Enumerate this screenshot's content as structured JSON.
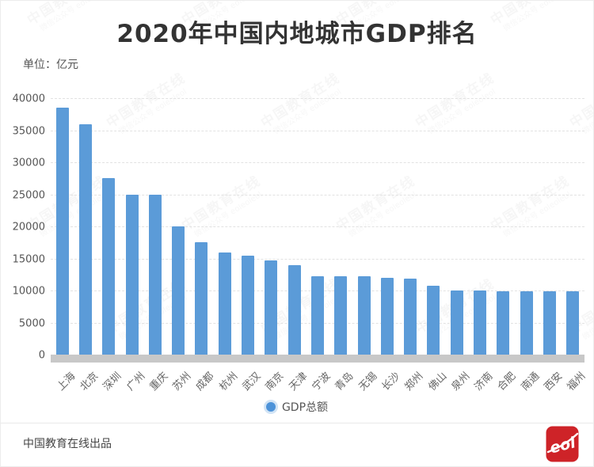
{
  "header": {
    "title": "2020年中国内地城市GDP排名",
    "unit_label": "单位：亿元"
  },
  "chart_data": {
    "type": "bar",
    "title": "2020年中国内地城市GDP排名",
    "unit": "亿元",
    "categories": [
      "上海",
      "北京",
      "深圳",
      "广州",
      "重庆",
      "苏州",
      "成都",
      "杭州",
      "武汉",
      "南京",
      "天津",
      "宁波",
      "青岛",
      "无锡",
      "长沙",
      "郑州",
      "佛山",
      "泉州",
      "济南",
      "合肥",
      "南通",
      "西安",
      "福州"
    ],
    "values": [
      38700,
      36103,
      27670,
      25019,
      25003,
      20171,
      17717,
      16106,
      15616,
      14818,
      14084,
      12409,
      12401,
      12370,
      12143,
      12003,
      10816,
      10159,
      10141,
      10046,
      10036,
      10020,
      10020
    ],
    "series_name": "GDP总额",
    "xlabel": "",
    "ylabel": "亿元",
    "ylim": [
      0,
      40000
    ],
    "ytick_step": 5000,
    "grid": "dashed-horizontal",
    "legend_position": "bottom",
    "bar_color": "#5B9BD8"
  },
  "legend": {
    "label": "GDP总额",
    "dot_color": "#4D93D9"
  },
  "footer": {
    "credit": "中国教育在线出品",
    "logo_text": "eol"
  },
  "watermark": {
    "line1": "中国教育在线",
    "line2": "微信公众号 eoleoleol"
  },
  "colors": {
    "bar": "#5B9BD8",
    "axis_strip": "#C8C8C8",
    "gridline": "#E2E2E2",
    "title_text": "#333333",
    "label_text": "#666666",
    "logo_red": "#CE2328"
  }
}
